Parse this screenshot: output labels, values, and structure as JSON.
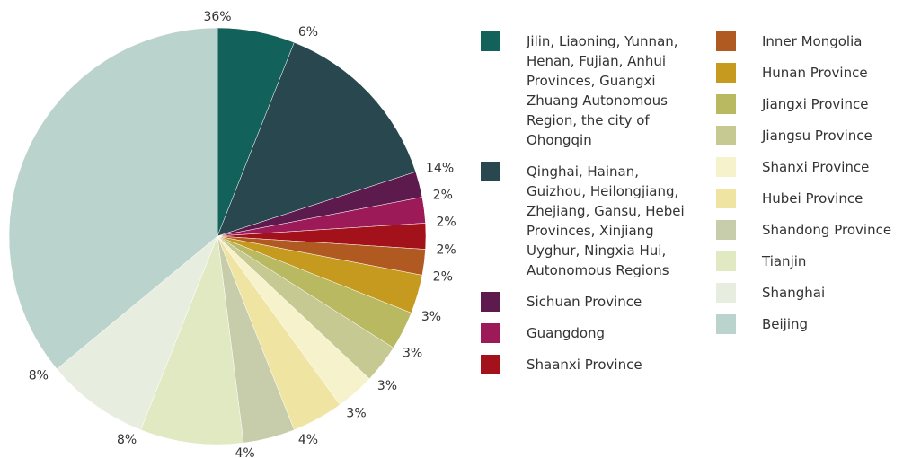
{
  "chart_data": {
    "type": "pie",
    "categories": [
      "Jilin, Liaoning, Yunnan, Henan, Fujian, Anhui Provinces, Guangxi Zhuang Autonomous Region, the city of Ohongqin",
      "Qinghai, Hainan, Guizhou, Heilongjiang, Zhejiang, Gansu, Hebei Provinces, Xinjiang Uyghur, Ningxia Hui, Autonomous Regions",
      "Sichuan Province",
      "Guangdong",
      "Shaanxi Province",
      "Inner Mongolia",
      "Hunan Province",
      "Jiangxi Province",
      "Jiangsu Province",
      "Shanxi Province",
      "Hubei Province",
      "Shandong Province",
      "Tianjin",
      "Shanghai",
      "Beijing"
    ],
    "values": [
      6,
      14,
      2,
      2,
      2,
      2,
      3,
      3,
      3,
      3,
      4,
      4,
      8,
      8,
      36
    ],
    "value_labels": [
      "6%",
      "14%",
      "2%",
      "2%",
      "2%",
      "2%",
      "3%",
      "3%",
      "3%",
      "3%",
      "4%",
      "4%",
      "8%",
      "8%",
      "36%"
    ],
    "colors": [
      "#12615a",
      "#28474f",
      "#5c1a4d",
      "#9b1a57",
      "#a3111a",
      "#b05a22",
      "#c59a1e",
      "#b9b962",
      "#c6c991",
      "#f6f2cb",
      "#f0e4a3",
      "#c7ccaa",
      "#e1e9c3",
      "#e8eedf",
      "#bad3cc"
    ]
  }
}
